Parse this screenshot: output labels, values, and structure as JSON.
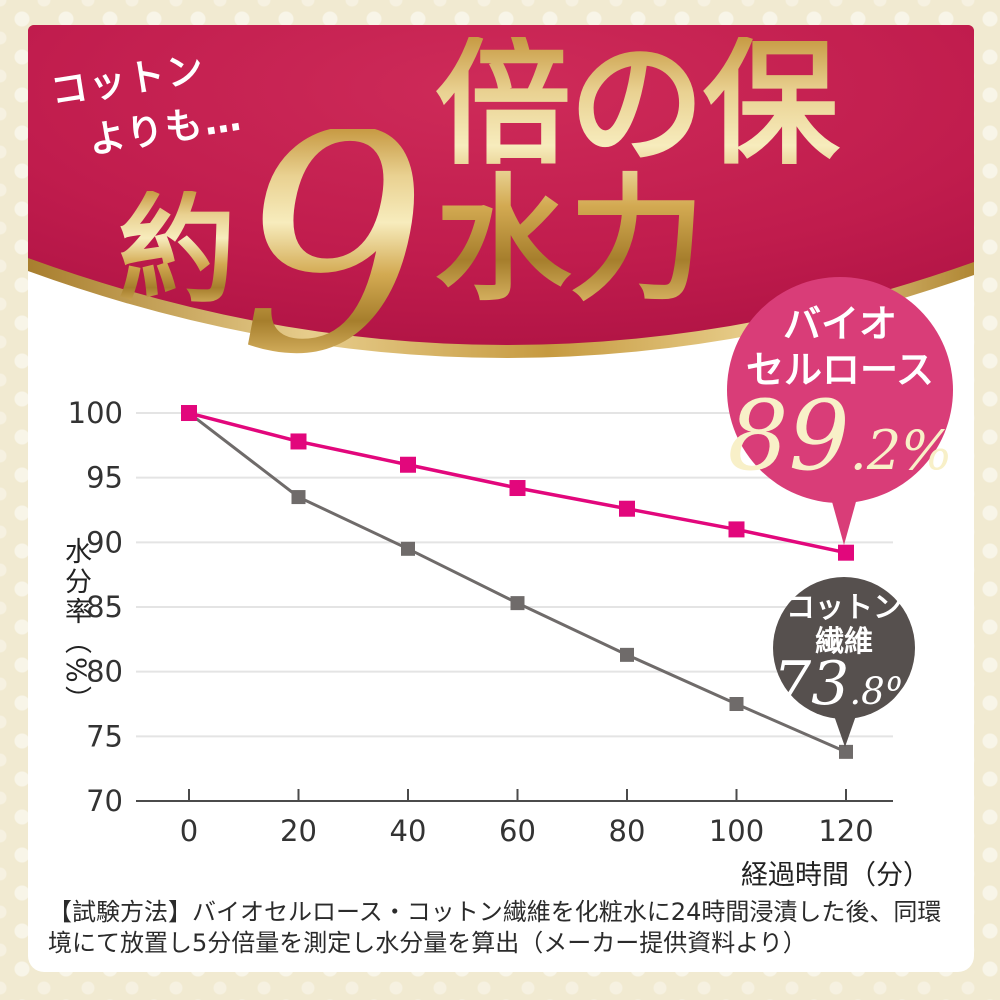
{
  "banner": {
    "note_line1": "コットン",
    "note_line2": "よりも…",
    "title_prefix": "約",
    "title_number": "9",
    "title_suffix": "倍の保水力",
    "bg_color": "#bf1b4b",
    "gold_color": "#d8b055"
  },
  "callouts": {
    "bio": {
      "line1": "バイオ",
      "line2": "セルロース",
      "value": "89.2%",
      "value_main": "89",
      "value_sub": ".2%",
      "bubble_color": "#d93d78",
      "value_color": "#f8f0c8"
    },
    "cotton": {
      "line1": "コットン",
      "line2": "繊維",
      "value": "73.8%",
      "value_main": "73",
      "value_sub": ".8%",
      "bubble_color": "#56504e",
      "value_color": "#ffffff"
    }
  },
  "chart_data": {
    "type": "line",
    "title": "約9倍の保水力（コットンよりも…）",
    "x": [
      0,
      20,
      40,
      60,
      80,
      100,
      120
    ],
    "xlabel": "経過時間（分）",
    "ylabel": "水分率（%）",
    "ylim": [
      70,
      100
    ],
    "yticks": [
      70,
      75,
      80,
      85,
      90,
      95,
      100
    ],
    "grid": true,
    "legend_position": "callout-bubbles",
    "series": [
      {
        "name": "バイオセルロース",
        "values": [
          100,
          97.8,
          96.0,
          94.2,
          92.6,
          91.0,
          89.2
        ],
        "color": "#e2077c",
        "marker": "square",
        "final_label": "89.2%"
      },
      {
        "name": "コットン繊維",
        "values": [
          100,
          93.5,
          89.5,
          85.3,
          81.3,
          77.5,
          73.8
        ],
        "color": "#6f6b6a",
        "marker": "square",
        "final_label": "73.8%"
      }
    ]
  },
  "footnote": {
    "text": "【試験方法】バイオセルロース・コットン繊維を化粧水に24時間浸漬した後、同環境にて放置し5分倍量を測定し水分量を算出（メーカー提供資料より）"
  }
}
